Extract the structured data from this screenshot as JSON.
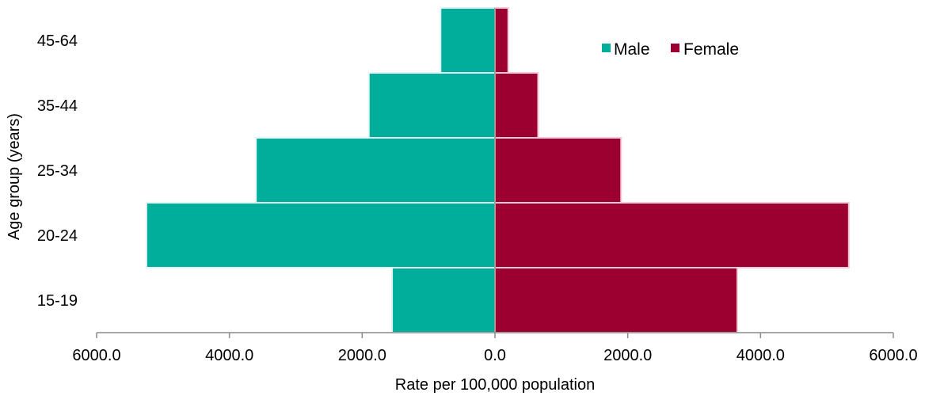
{
  "chart_data": {
    "type": "bar",
    "orientation": "horizontal",
    "layout": "population-pyramid",
    "categories": [
      "15-19",
      "20-24",
      "25-34",
      "35-44",
      "45-64"
    ],
    "series": [
      {
        "name": "Male",
        "side": "left",
        "color": "#00ae9b",
        "values": [
          1550,
          5250,
          3600,
          1900,
          820
        ]
      },
      {
        "name": "Female",
        "side": "right",
        "color": "#9b0031",
        "values": [
          3650,
          5330,
          1900,
          650,
          200
        ]
      }
    ],
    "xlabel": "Rate per 100,000 population",
    "ylabel": "Age group (years)",
    "xlim": [
      -6000,
      6000
    ],
    "x_ticks": [
      -6000,
      -4000,
      -2000,
      0,
      2000,
      4000,
      6000
    ],
    "x_tick_labels": [
      "6000.0",
      "4000.0",
      "2000.0",
      "0.0",
      "2000.0",
      "4000.0",
      "6000.0"
    ],
    "grid": false,
    "legend": {
      "position": "top-right",
      "entries": [
        "Male",
        "Female"
      ]
    }
  }
}
